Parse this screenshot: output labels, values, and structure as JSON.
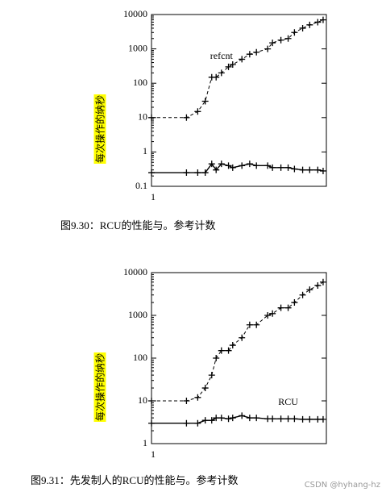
{
  "chart_data": [
    {
      "type": "line",
      "caption": "图9.30：RCU的性能与。参考计数",
      "y_label": "每次操作的纳秒",
      "xlog": true,
      "ylog": true,
      "grid": false,
      "xlim": [
        1,
        32
      ],
      "xticks": [
        1
      ],
      "ylim": [
        0.1,
        10000
      ],
      "yticks": [
        0.1,
        1,
        10,
        100,
        1000,
        10000
      ],
      "x": [
        1,
        2,
        2.5,
        2.9,
        3.3,
        3.6,
        4,
        4.6,
        5,
        6,
        7,
        8,
        10,
        11,
        13,
        15,
        17,
        20,
        23,
        27,
        30
      ],
      "series": [
        {
          "name": "refcnt",
          "color": "#000000",
          "dashed": true,
          "values": [
            10,
            10,
            15,
            30,
            150,
            150,
            200,
            300,
            350,
            500,
            700,
            800,
            1000,
            1500,
            1800,
            2000,
            3000,
            4000,
            5000,
            6000,
            7000
          ]
        },
        {
          "color": "#000000",
          "dashed": false,
          "values": [
            0.25,
            0.25,
            0.25,
            0.25,
            0.45,
            0.3,
            0.45,
            0.4,
            0.35,
            0.4,
            0.45,
            0.4,
            0.4,
            0.35,
            0.35,
            0.35,
            0.32,
            0.3,
            0.3,
            0.3,
            0.28
          ]
        }
      ]
    },
    {
      "type": "line",
      "caption": "图9.31：先发制人的RCU的性能与。参考计数",
      "y_label": "每次操作的纳秒",
      "xlog": true,
      "ylog": true,
      "grid": false,
      "xlim": [
        1,
        32
      ],
      "xticks": [
        1
      ],
      "ylim": [
        1,
        10000
      ],
      "yticks": [
        1,
        10,
        100,
        1000,
        10000
      ],
      "x": [
        1,
        2,
        2.5,
        2.9,
        3.3,
        3.6,
        4,
        4.6,
        5,
        6,
        7,
        8,
        10,
        11,
        13,
        15,
        17,
        20,
        23,
        27,
        30
      ],
      "series": [
        {
          "color": "#000000",
          "dashed": true,
          "values": [
            10,
            10,
            12,
            20,
            40,
            100,
            150,
            150,
            200,
            300,
            600,
            600,
            1000,
            1100,
            1500,
            1500,
            2000,
            3000,
            4000,
            5000,
            6000
          ]
        },
        {
          "name": "RCU",
          "color": "#000000",
          "dashed": false,
          "values": [
            3,
            3,
            3,
            3.5,
            3.5,
            4,
            4,
            3.8,
            4,
            4.5,
            4,
            4,
            3.8,
            3.8,
            3.8,
            3.8,
            3.8,
            3.7,
            3.7,
            3.7,
            3.7
          ]
        }
      ]
    }
  ],
  "watermark": "CSDN @hyhang-hz"
}
